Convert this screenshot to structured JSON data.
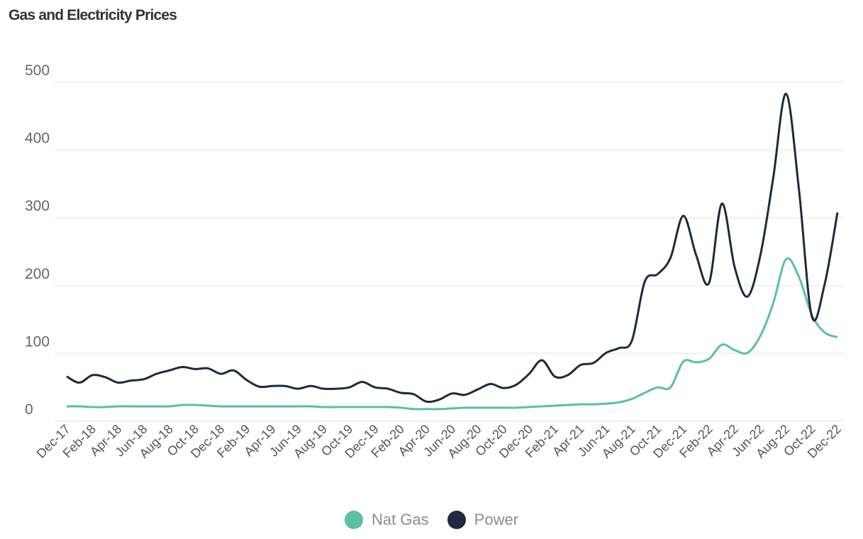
{
  "chart_data": {
    "type": "line",
    "title": "Gas and Electricity Prices",
    "xlabel": "",
    "ylabel": "",
    "ylim": [
      0,
      500
    ],
    "yticks": [
      "0",
      "100",
      "200",
      "300",
      "400",
      "500"
    ],
    "grid": true,
    "legend_placement": "bottom-center",
    "x": [
      "Dec-17",
      "Jan-18",
      "Feb-18",
      "Mar-18",
      "Apr-18",
      "May-18",
      "Jun-18",
      "Jul-18",
      "Aug-18",
      "Sep-18",
      "Oct-18",
      "Nov-18",
      "Dec-18",
      "Jan-19",
      "Feb-19",
      "Mar-19",
      "Apr-19",
      "May-19",
      "Jun-19",
      "Jul-19",
      "Aug-19",
      "Sep-19",
      "Oct-19",
      "Nov-19",
      "Dec-19",
      "Jan-20",
      "Feb-20",
      "Mar-20",
      "Apr-20",
      "May-20",
      "Jun-20",
      "Jul-20",
      "Aug-20",
      "Sep-20",
      "Oct-20",
      "Nov-20",
      "Dec-20",
      "Jan-21",
      "Feb-21",
      "Mar-21",
      "Apr-21",
      "May-21",
      "Jun-21",
      "Jul-21",
      "Aug-21",
      "Sep-21",
      "Oct-21",
      "Nov-21",
      "Dec-21",
      "Jan-22",
      "Feb-22",
      "Mar-22",
      "Apr-22",
      "May-22",
      "Jun-22",
      "Jul-22",
      "Aug-22",
      "Sep-22",
      "Oct-22",
      "Nov-22",
      "Dec-22"
    ],
    "xtick_labels": [
      "Dec-17",
      "Feb-18",
      "Apr-18",
      "Jun-18",
      "Aug-18",
      "Oct-18",
      "Dec-18",
      "Feb-19",
      "Apr-19",
      "Jun-19",
      "Aug-19",
      "Oct-19",
      "Dec-19",
      "Feb-20",
      "Apr-20",
      "Jun-20",
      "Aug-20",
      "Oct-20",
      "Dec-20",
      "Feb-21",
      "Apr-21",
      "Jun-21",
      "Aug-21",
      "Oct-21",
      "Dec-21",
      "Feb-22",
      "Apr-22",
      "Jun-22",
      "Aug-22",
      "Oct-22",
      "Dec-22"
    ],
    "series": [
      {
        "name": "Nat Gas",
        "color": "#5bbfa6",
        "values": [
          22,
          22,
          21,
          21,
          22,
          22,
          22,
          22,
          22,
          24,
          24,
          23,
          22,
          22,
          22,
          22,
          22,
          22,
          22,
          22,
          21,
          21,
          21,
          21,
          21,
          21,
          20,
          18,
          18,
          18,
          19,
          20,
          20,
          20,
          20,
          20,
          21,
          22,
          23,
          24,
          25,
          25,
          26,
          28,
          33,
          42,
          50,
          50,
          88,
          87,
          92,
          113,
          105,
          101,
          126,
          174,
          239,
          213,
          157,
          131,
          124
        ]
      },
      {
        "name": "Power",
        "color": "#1f2940",
        "values": [
          66,
          57,
          68,
          65,
          57,
          60,
          62,
          70,
          75,
          80,
          77,
          78,
          70,
          75,
          61,
          51,
          52,
          52,
          48,
          52,
          48,
          48,
          50,
          58,
          50,
          48,
          42,
          40,
          29,
          32,
          41,
          39,
          47,
          55,
          49,
          54,
          70,
          90,
          66,
          68,
          83,
          86,
          101,
          108,
          119,
          206,
          217,
          241,
          303,
          245,
          204,
          321,
          227,
          184,
          245,
          359,
          483,
          342,
          155,
          202,
          308
        ]
      }
    ]
  }
}
